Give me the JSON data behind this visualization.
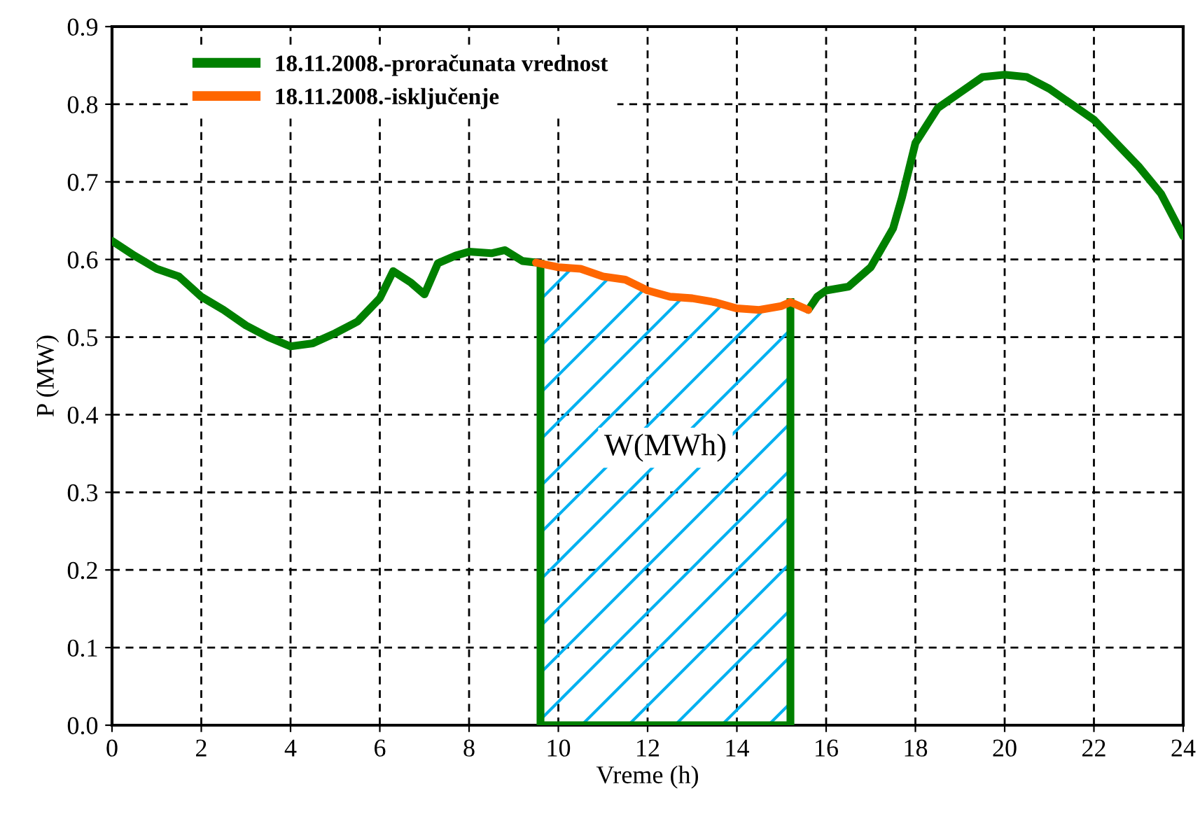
{
  "chart_data": {
    "type": "line",
    "xlabel": "Vreme (h)",
    "ylabel": "P (MW)",
    "xlim": [
      0,
      24
    ],
    "xticks": [
      0,
      2,
      4,
      6,
      8,
      10,
      12,
      14,
      16,
      18,
      20,
      22,
      24
    ],
    "ylim": [
      0,
      0.9
    ],
    "yticks": [
      {
        "value": 0,
        "label": "0.0"
      },
      0.1,
      0.2,
      0.3,
      0.4,
      0.5,
      0.6,
      0.7,
      0.8,
      0.9
    ],
    "grid": true,
    "legend": "top left",
    "marker": "none",
    "line_style": "solid",
    "series": [
      {
        "name": "18.11.2008.-proračunata vrednost",
        "color": "#008000",
        "x": [
          0,
          0.5,
          1,
          1.5,
          2,
          2.5,
          3,
          3.5,
          4,
          4.5,
          5,
          5.5,
          6,
          6.3,
          6.7,
          7,
          7.3,
          7.7,
          8,
          8.5,
          8.8,
          9.2,
          9.5,
          12.5,
          15.6,
          15.8,
          16,
          16.5,
          17,
          17.5,
          17.7,
          18,
          18.5,
          19,
          19.5,
          20,
          20.5,
          21,
          21.5,
          22,
          22.5,
          23,
          23.5,
          24
        ],
        "values": [
          0.624,
          0.605,
          0.588,
          0.578,
          0.552,
          0.535,
          0.515,
          0.5,
          0.488,
          0.492,
          0.505,
          0.52,
          0.55,
          0.585,
          0.57,
          0.555,
          0.595,
          0.605,
          0.61,
          0.608,
          0.612,
          0.598,
          0.596,
          null,
          0.535,
          0.552,
          0.56,
          0.565,
          0.59,
          0.64,
          0.68,
          0.75,
          0.795,
          0.815,
          0.835,
          0.838,
          0.835,
          0.82,
          0.8,
          0.78,
          0.75,
          0.72,
          0.685,
          0.63
        ]
      },
      {
        "name": "18.11.2008.-isključenje",
        "color": "#ff6600",
        "x": [
          9.5,
          10,
          10.5,
          11,
          11.5,
          12,
          12.5,
          13,
          13.5,
          14,
          14.5,
          15,
          15.2,
          15.6
        ],
        "values": [
          0.596,
          0.59,
          0.588,
          0.578,
          0.574,
          0.56,
          0.552,
          0.55,
          0.545,
          0.537,
          0.535,
          0.54,
          0.545,
          0.535
        ]
      }
    ],
    "bands": [
      {
        "axis": "x",
        "from": 9.6,
        "to": 15.2,
        "label": "W(MWh)",
        "color": "#008000"
      }
    ]
  }
}
